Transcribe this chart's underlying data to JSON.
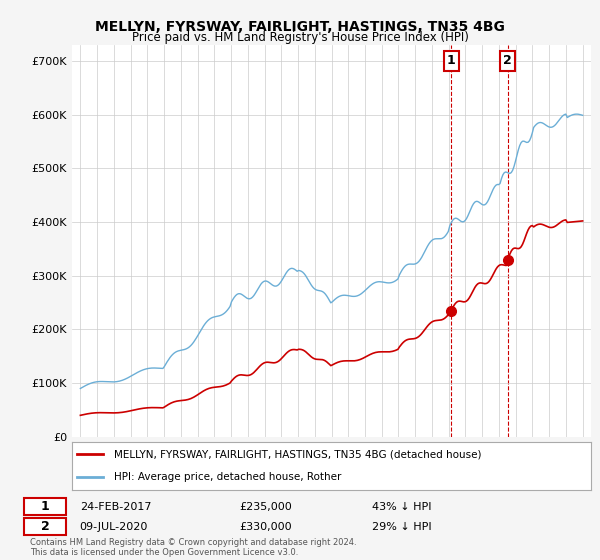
{
  "title_line1": "MELLYN, FYRSWAY, FAIRLIGHT, HASTINGS, TN35 4BG",
  "title_line2": "Price paid vs. HM Land Registry's House Price Index (HPI)",
  "hpi_color": "#6baed6",
  "price_color": "#cc0000",
  "marker1_x": 2017.15,
  "marker1_price": 235000,
  "marker2_x": 2020.53,
  "marker2_price": 330000,
  "legend_entry1": "MELLYN, FYRSWAY, FAIRLIGHT, HASTINGS, TN35 4BG (detached house)",
  "legend_entry2": "HPI: Average price, detached house, Rother",
  "footer": "Contains HM Land Registry data © Crown copyright and database right 2024.\nThis data is licensed under the Open Government Licence v3.0.",
  "background_color": "#f5f5f5",
  "plot_bg_color": "#ffffff"
}
